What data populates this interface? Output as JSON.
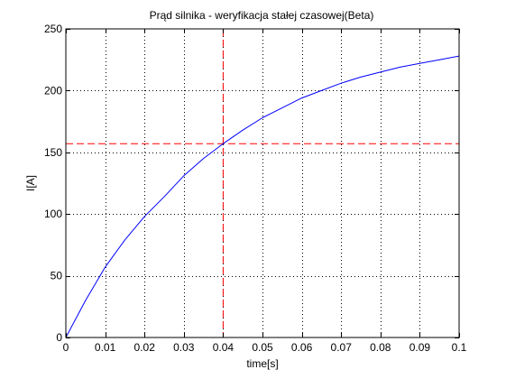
{
  "chart_data": {
    "type": "line",
    "title": "Prąd silnika - weryfikacja stałej czasowej(Beta)",
    "xlabel": "time[s]",
    "ylabel": "I[A]",
    "xlim": [
      0,
      0.1
    ],
    "ylim": [
      0,
      250
    ],
    "x_ticks": [
      0,
      0.01,
      0.02,
      0.03,
      0.04,
      0.05,
      0.06,
      0.07,
      0.08,
      0.09,
      0.1
    ],
    "x_tick_labels": [
      "0",
      "0.01",
      "0.02",
      "0.03",
      "0.04",
      "0.05",
      "0.06",
      "0.07",
      "0.08",
      "0.09",
      "0.1"
    ],
    "y_ticks": [
      0,
      50,
      100,
      150,
      200,
      250
    ],
    "y_tick_labels": [
      "0",
      "50",
      "100",
      "150",
      "200",
      "250"
    ],
    "grid": true,
    "series": [
      {
        "color": "#0000ff",
        "style": "solid",
        "x": [
          0,
          0.005,
          0.01,
          0.015,
          0.02,
          0.025,
          0.03,
          0.035,
          0.04,
          0.045,
          0.05,
          0.055,
          0.06,
          0.065,
          0.07,
          0.075,
          0.08,
          0.085,
          0.09,
          0.095,
          0.1
        ],
        "y": [
          0,
          30,
          57,
          79,
          98,
          114,
          131,
          145,
          157,
          168,
          178,
          186,
          194,
          200,
          206,
          211,
          215,
          219,
          222,
          225,
          228
        ]
      }
    ],
    "reference_lines": [
      {
        "orientation": "horizontal",
        "value": 157,
        "color": "#ff0000",
        "style": "dashed"
      },
      {
        "orientation": "vertical",
        "value": 0.04,
        "color": "#ff0000",
        "style": "dashed"
      }
    ]
  }
}
